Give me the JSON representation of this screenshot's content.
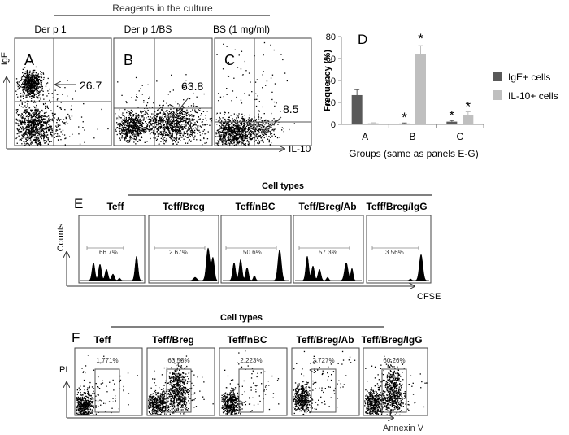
{
  "figure_top": {
    "header": "Reagents in the culture",
    "panels": [
      {
        "letter": "A",
        "label": "Der p 1",
        "value": "26.7"
      },
      {
        "letter": "B",
        "label": "Der p 1/BS",
        "value": "63.8"
      },
      {
        "letter": "C",
        "label": "BS (1 mg/ml)",
        "value": "8.5"
      }
    ],
    "y_axis_label": "IgE",
    "x_axis_label": "IL-10"
  },
  "chart_data": {
    "type": "bar",
    "panel_letter": "D",
    "title": "",
    "categories": [
      "A",
      "B",
      "C"
    ],
    "series": [
      {
        "name": "IgE+ cells",
        "color": "#595959",
        "values": [
          26.7,
          0.8,
          2.5
        ],
        "errors": [
          5,
          0.5,
          1
        ]
      },
      {
        "name": "IL-10+ cells",
        "color": "#bfbfbf",
        "values": [
          1,
          63.8,
          8.5
        ],
        "errors": [
          0.5,
          8,
          3
        ]
      }
    ],
    "ylabel": "Frequency (%)",
    "xlabel": "Groups (same as panels E-G)",
    "ylim": [
      0,
      80
    ],
    "yticks": [
      "0",
      "20",
      "40",
      "60",
      "80"
    ],
    "significance_mark": "*",
    "legend_position": "right"
  },
  "figure_e": {
    "letter": "E",
    "header": "Cell types",
    "y_axis_label": "Counts",
    "x_axis_label": "CFSE",
    "panels": [
      {
        "label": "Teff",
        "value": "66.7%"
      },
      {
        "label": "Teff/Breg",
        "value": "2.67%"
      },
      {
        "label": "Teff/nBC",
        "value": "50.6%"
      },
      {
        "label": "Teff/Breg/Ab",
        "value": "57.3%"
      },
      {
        "label": "Teff/Breg/IgG",
        "value": "3.56%"
      }
    ]
  },
  "figure_f": {
    "letter": "F",
    "header": "Cell types",
    "y_axis_label": "PI",
    "x_axis_label": "Annexin V",
    "panels": [
      {
        "label": "Teff",
        "value": "1.771%"
      },
      {
        "label": "Teff/Breg",
        "value": "63.53%"
      },
      {
        "label": "Teff/nBC",
        "value": "2.223%"
      },
      {
        "label": "Teff/Breg/Ab",
        "value": "2.727%"
      },
      {
        "label": "Teff/Breg/IgG",
        "value": "60.26%"
      }
    ]
  }
}
